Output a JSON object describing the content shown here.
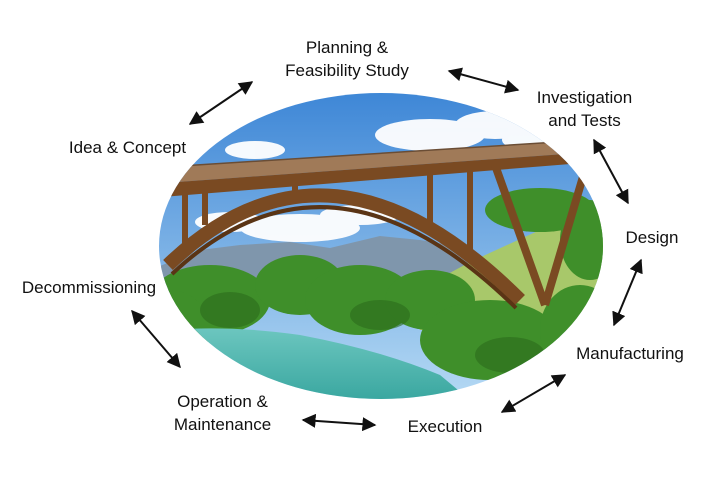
{
  "stages": [
    {
      "id": "idea",
      "lines": [
        "Idea & Concept"
      ]
    },
    {
      "id": "planning",
      "lines": [
        "Planning &",
        "Feasibility Study"
      ]
    },
    {
      "id": "investigation",
      "lines": [
        "Investigation",
        "and Tests"
      ]
    },
    {
      "id": "design",
      "lines": [
        "Design"
      ]
    },
    {
      "id": "manufacturing",
      "lines": [
        "Manufacturing"
      ]
    },
    {
      "id": "execution",
      "lines": [
        "Execution"
      ]
    },
    {
      "id": "operation",
      "lines": [
        "Operation &",
        "Maintenance"
      ]
    },
    {
      "id": "decommissioning",
      "lines": [
        "Decommissioning"
      ]
    }
  ],
  "colors": {
    "text": "#111111",
    "arrow": "#111111",
    "sky_top": "#3d86d6",
    "sky_bottom": "#b9dcf5",
    "mountain": "#7f96ac",
    "foliage": "#3f8f2a",
    "meadow": "#a8c86a",
    "river": "#3aa7a0",
    "bridge_wood": "#7a4a22",
    "deck": "#a07a58"
  },
  "illustration": {
    "name": "wooden-arch-bridge-photo",
    "description_visible": false
  }
}
